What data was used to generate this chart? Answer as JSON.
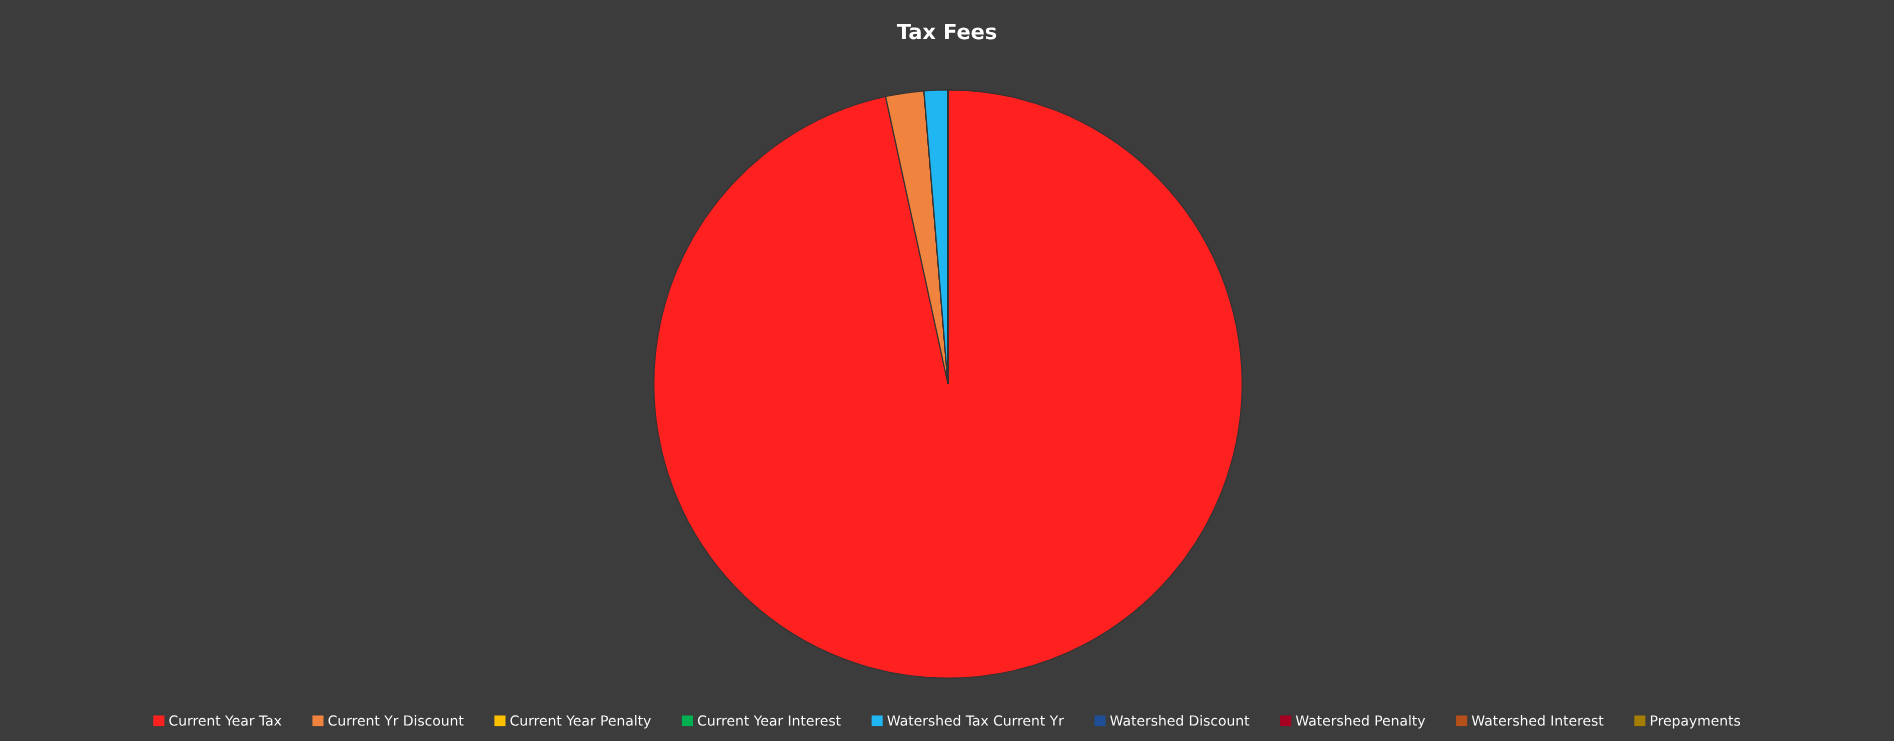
{
  "chart_data": {
    "type": "pie",
    "title": "Tax Fees",
    "categories": [
      "Current Year Tax",
      "Current Yr Discount",
      "Current Year Penalty",
      "Current Year Interest",
      "Watershed Tax Current Yr",
      "Watershed Discount",
      "Watershed Penalty",
      "Watershed Interest",
      "Prepayments"
    ],
    "values": [
      96.6,
      2.1,
      0,
      0,
      1.3,
      0,
      0,
      0,
      0
    ],
    "colors": [
      "#ff2020",
      "#f0843e",
      "#ffc000",
      "#00b050",
      "#1fb6f2",
      "#1f4e99",
      "#a50021",
      "#b5501a",
      "#a57d00"
    ],
    "legend": "bottom"
  }
}
